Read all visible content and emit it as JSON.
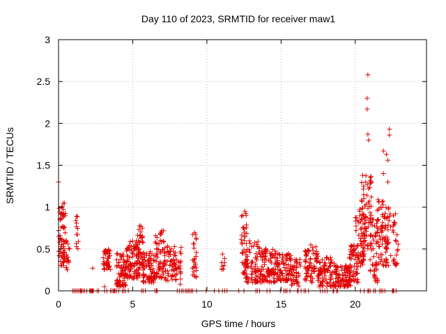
{
  "chart_data": {
    "type": "scatter",
    "title": "Day 110 of 2023, SRMTID for receiver maw1",
    "xlabel": "GPS time / hours",
    "ylabel": "SRMTID / TECUs",
    "xlim": [
      0,
      24.8
    ],
    "ylim": [
      0,
      3
    ],
    "xticks": [
      0,
      5,
      10,
      15,
      20
    ],
    "yticks": [
      0,
      0.5,
      1,
      1.5,
      2,
      2.5,
      3
    ],
    "ytick_labels": [
      "0",
      "0.5",
      "1",
      "1.5",
      "2",
      "2.5",
      "3"
    ],
    "grid": true,
    "marker": "+",
    "series": [
      {
        "name": "SRMTID",
        "color": "#e00000",
        "clusters": [
          {
            "x": [
              0.0,
              0.5
            ],
            "y": [
              0.3,
              1.05
            ],
            "n": 70
          },
          {
            "x": [
              0.5,
              0.75
            ],
            "y": [
              0.25,
              0.65
            ],
            "n": 15
          },
          {
            "x": [
              1.15,
              1.35
            ],
            "y": [
              0.5,
              0.9
            ],
            "n": 12
          },
          {
            "x": [
              3.0,
              3.5
            ],
            "y": [
              0.25,
              0.5
            ],
            "n": 40
          },
          {
            "x": [
              3.9,
              4.6
            ],
            "y": [
              0.05,
              0.45
            ],
            "n": 70
          },
          {
            "x": [
              4.5,
              5.5
            ],
            "y": [
              0.15,
              0.6
            ],
            "n": 90
          },
          {
            "x": [
              5.2,
              5.7
            ],
            "y": [
              0.3,
              0.8
            ],
            "n": 40
          },
          {
            "x": [
              5.7,
              6.5
            ],
            "y": [
              0.1,
              0.5
            ],
            "n": 70
          },
          {
            "x": [
              6.5,
              7.1
            ],
            "y": [
              0.15,
              0.75
            ],
            "n": 55
          },
          {
            "x": [
              7.1,
              8.3
            ],
            "y": [
              0.12,
              0.55
            ],
            "n": 80
          },
          {
            "x": [
              9.0,
              9.3
            ],
            "y": [
              0.15,
              0.78
            ],
            "n": 25
          },
          {
            "x": [
              11.0,
              11.2
            ],
            "y": [
              0.25,
              0.45
            ],
            "n": 10
          },
          {
            "x": [
              12.3,
              12.7
            ],
            "y": [
              0.2,
              0.98
            ],
            "n": 40
          },
          {
            "x": [
              12.6,
              13.6
            ],
            "y": [
              0.1,
              0.6
            ],
            "n": 80
          },
          {
            "x": [
              13.6,
              14.6
            ],
            "y": [
              0.1,
              0.55
            ],
            "n": 90
          },
          {
            "x": [
              14.6,
              15.7
            ],
            "y": [
              0.12,
              0.45
            ],
            "n": 90
          },
          {
            "x": [
              15.7,
              16.3
            ],
            "y": [
              0.05,
              0.4
            ],
            "n": 40
          },
          {
            "x": [
              16.6,
              17.5
            ],
            "y": [
              0.1,
              0.55
            ],
            "n": 70
          },
          {
            "x": [
              17.5,
              18.6
            ],
            "y": [
              0.05,
              0.4
            ],
            "n": 80
          },
          {
            "x": [
              18.6,
              19.7
            ],
            "y": [
              0.05,
              0.3
            ],
            "n": 90
          },
          {
            "x": [
              19.6,
              20.2
            ],
            "y": [
              0.1,
              0.55
            ],
            "n": 50
          },
          {
            "x": [
              20.0,
              20.6
            ],
            "y": [
              0.3,
              1.0
            ],
            "n": 55
          },
          {
            "x": [
              20.4,
              21.1
            ],
            "y": [
              0.5,
              1.4
            ],
            "n": 60
          },
          {
            "x": [
              21.0,
              21.5
            ],
            "y": [
              0.1,
              0.9
            ],
            "n": 45
          },
          {
            "x": [
              21.4,
              22.1
            ],
            "y": [
              0.3,
              1.1
            ],
            "n": 60
          },
          {
            "x": [
              22.0,
              22.4
            ],
            "y": [
              0.3,
              1.0
            ],
            "n": 30
          },
          {
            "x": [
              22.5,
              22.9
            ],
            "y": [
              0.3,
              1.0
            ],
            "n": 25
          }
        ],
        "outliers": [
          {
            "x": 0.0,
            "y": 1.3
          },
          {
            "x": 20.85,
            "y": 2.58
          },
          {
            "x": 20.8,
            "y": 2.3
          },
          {
            "x": 20.8,
            "y": 2.17
          },
          {
            "x": 20.85,
            "y": 1.87
          },
          {
            "x": 20.9,
            "y": 1.8
          },
          {
            "x": 22.3,
            "y": 1.93
          },
          {
            "x": 22.3,
            "y": 1.86
          },
          {
            "x": 21.9,
            "y": 1.67
          },
          {
            "x": 22.1,
            "y": 1.63
          },
          {
            "x": 22.2,
            "y": 1.56
          },
          {
            "x": 21.9,
            "y": 1.4
          },
          {
            "x": 22.2,
            "y": 1.3
          },
          {
            "x": 20.5,
            "y": 1.38
          },
          {
            "x": 20.7,
            "y": 1.3
          },
          {
            "x": 20.9,
            "y": 1.22
          },
          {
            "x": 2.3,
            "y": 0.27
          },
          {
            "x": 3.1,
            "y": 0.05
          },
          {
            "x": 8.2,
            "y": 0.08
          }
        ],
        "zero_points_x": [
          0.95,
          1.05,
          1.15,
          1.25,
          1.35,
          1.45,
          1.5,
          1.55,
          1.65,
          1.75,
          1.9,
          2.1,
          2.15,
          2.2,
          2.25,
          2.3,
          2.35,
          2.6,
          2.7,
          3.1,
          3.25,
          3.5,
          3.6,
          3.7,
          3.75,
          3.8,
          3.9,
          4.05,
          4.3,
          4.4,
          4.5,
          4.7,
          5.6,
          5.7,
          5.85,
          6.5,
          6.6,
          6.65,
          8.0,
          8.15,
          8.3,
          8.4,
          8.55,
          8.65,
          8.75,
          8.85,
          8.95,
          9.05,
          9.3,
          9.95,
          10.5,
          10.8,
          11.05,
          11.2,
          11.35,
          12.15,
          12.5,
          13.3,
          13.4,
          13.55,
          14.05,
          14.25,
          14.95,
          15.2,
          15.3,
          15.4,
          15.6,
          16.1,
          16.15,
          16.35,
          16.55,
          16.65,
          16.85,
          17.65,
          17.8,
          17.95,
          18.1,
          18.5,
          18.55,
          18.75,
          18.8,
          20.35,
          20.6,
          20.85,
          20.9,
          21.0,
          21.25,
          21.35,
          21.65,
          21.75,
          21.85,
          22.0,
          22.5,
          22.55,
          22.6,
          22.75
        ]
      }
    ]
  }
}
